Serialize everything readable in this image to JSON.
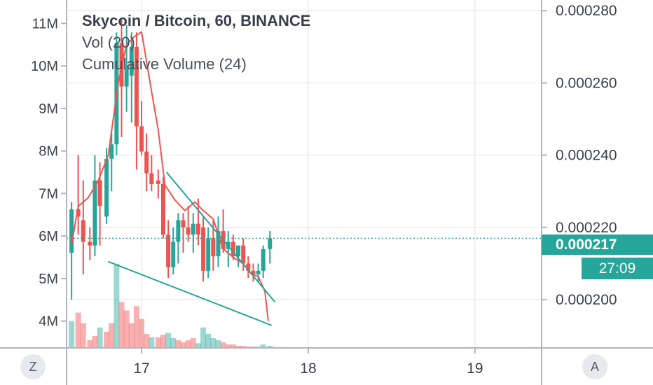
{
  "legend": {
    "title": "Skycoin / Bitcoin, 60, BINANCE",
    "vol": "Vol (20)",
    "cumulative": "Cumulative Volume (24)"
  },
  "badges": {
    "last_price": "0.000217",
    "countdown": "27:09"
  },
  "buttons": {
    "z": "Z",
    "a": "A"
  },
  "colors": {
    "up": "#26a69a",
    "down": "#ef5350",
    "vol_up": "#26a69a",
    "vol_down": "#ef5350",
    "line": "#ef5350",
    "trend": "#26a69a",
    "grid": "#e0e3eb"
  },
  "chart_data": {
    "type": "candlestick",
    "symbol": "Skycoin / Bitcoin",
    "interval": "60",
    "exchange": "BINANCE",
    "x_ticks": [
      "17",
      "18",
      "19"
    ],
    "x_range_days": [
      16.55,
      19.4
    ],
    "price_axis": {
      "ticks": [
        "0.000280",
        "0.000260",
        "0.000240",
        "0.000220",
        "0.000200"
      ],
      "ticks_values": [
        0.00028,
        0.00026,
        0.00024,
        0.00022,
        0.0002
      ],
      "range": [
        0.00018665,
        0.00028295
      ]
    },
    "volume_axis": {
      "ticks": [
        "11M",
        "10M",
        "9M",
        "8M",
        "7M",
        "6M",
        "5M",
        "4M"
      ],
      "ticks_values": [
        11,
        10,
        9,
        8,
        7,
        6,
        5,
        4
      ],
      "range_millions": [
        3.37,
        11.55
      ]
    },
    "last_price": 0.000217,
    "candles": [
      {
        "t": 16.58,
        "o": 0.000213,
        "h": 0.000227,
        "l": 0.0002,
        "c": 0.000225
      },
      {
        "t": 16.62,
        "o": 0.000225,
        "h": 0.00024,
        "l": 0.000218,
        "c": 0.000223
      },
      {
        "t": 16.65,
        "o": 0.000222,
        "h": 0.000233,
        "l": 0.000207,
        "c": 0.000216
      },
      {
        "t": 16.69,
        "o": 0.000216,
        "h": 0.00022,
        "l": 0.000211,
        "c": 0.000215
      },
      {
        "t": 16.72,
        "o": 0.000215,
        "h": 0.00024,
        "l": 0.000212,
        "c": 0.000233
      },
      {
        "t": 16.75,
        "o": 0.000233,
        "h": 0.000238,
        "l": 0.000215,
        "c": 0.000226
      },
      {
        "t": 16.79,
        "o": 0.000223,
        "h": 0.000242,
        "l": 0.000221,
        "c": 0.000239
      },
      {
        "t": 16.82,
        "o": 0.000239,
        "h": 0.000247,
        "l": 0.00023,
        "c": 0.000243
      },
      {
        "t": 16.85,
        "o": 0.000243,
        "h": 0.000274,
        "l": 0.00024,
        "c": 0.000271
      },
      {
        "t": 16.88,
        "o": 0.000271,
        "h": 0.000278,
        "l": 0.000245,
        "c": 0.000259
      },
      {
        "t": 16.91,
        "o": 0.000259,
        "h": 0.000276,
        "l": 0.000252,
        "c": 0.000264
      },
      {
        "t": 16.94,
        "o": 0.000262,
        "h": 0.000274,
        "l": 0.000249,
        "c": 0.00027
      },
      {
        "t": 16.97,
        "o": 0.00027,
        "h": 0.000274,
        "l": 0.000236,
        "c": 0.000248
      },
      {
        "t": 17.0,
        "o": 0.000248,
        "h": 0.000255,
        "l": 0.00024,
        "c": 0.000241
      },
      {
        "t": 17.03,
        "o": 0.000241,
        "h": 0.000246,
        "l": 0.00023,
        "c": 0.000235
      },
      {
        "t": 17.06,
        "o": 0.000235,
        "h": 0.00024,
        "l": 0.00023,
        "c": 0.000232
      },
      {
        "t": 17.1,
        "o": 0.000233,
        "h": 0.000236,
        "l": 0.000228,
        "c": 0.000232
      },
      {
        "t": 17.13,
        "o": 0.000232,
        "h": 0.000234,
        "l": 0.000217,
        "c": 0.000218
      },
      {
        "t": 17.16,
        "o": 0.000218,
        "h": 0.000222,
        "l": 0.000206,
        "c": 0.000209
      },
      {
        "t": 17.19,
        "o": 0.000209,
        "h": 0.00022,
        "l": 0.000207,
        "c": 0.000216
      },
      {
        "t": 17.22,
        "o": 0.000216,
        "h": 0.000224,
        "l": 0.00021,
        "c": 0.000222
      },
      {
        "t": 17.25,
        "o": 0.000222,
        "h": 0.000224,
        "l": 0.000213,
        "c": 0.00022
      },
      {
        "t": 17.28,
        "o": 0.00022,
        "h": 0.000226,
        "l": 0.000216,
        "c": 0.000218
      },
      {
        "t": 17.31,
        "o": 0.000218,
        "h": 0.000224,
        "l": 0.000213,
        "c": 0.000221
      },
      {
        "t": 17.34,
        "o": 0.000221,
        "h": 0.000228,
        "l": 0.000215,
        "c": 0.000218
      },
      {
        "t": 17.37,
        "o": 0.00022,
        "h": 0.000223,
        "l": 0.000205,
        "c": 0.000208
      },
      {
        "t": 17.4,
        "o": 0.000208,
        "h": 0.00022,
        "l": 0.000206,
        "c": 0.000217
      },
      {
        "t": 17.43,
        "o": 0.000217,
        "h": 0.000222,
        "l": 0.000208,
        "c": 0.000212
      },
      {
        "t": 17.46,
        "o": 0.000212,
        "h": 0.000223,
        "l": 0.000209,
        "c": 0.000219
      },
      {
        "t": 17.49,
        "o": 0.000219,
        "h": 0.000225,
        "l": 0.000213,
        "c": 0.000214
      },
      {
        "t": 17.52,
        "o": 0.000214,
        "h": 0.000219,
        "l": 0.000209,
        "c": 0.000216
      },
      {
        "t": 17.55,
        "o": 0.000216,
        "h": 0.000218,
        "l": 0.000211,
        "c": 0.000212
      },
      {
        "t": 17.58,
        "o": 0.000212,
        "h": 0.000215,
        "l": 0.000209,
        "c": 0.000215
      },
      {
        "t": 17.61,
        "o": 0.000215,
        "h": 0.000217,
        "l": 0.000208,
        "c": 0.00021
      },
      {
        "t": 17.64,
        "o": 0.00021,
        "h": 0.000212,
        "l": 0.000206,
        "c": 0.000208
      },
      {
        "t": 17.67,
        "o": 0.000208,
        "h": 0.00021,
        "l": 0.000205,
        "c": 0.000207
      },
      {
        "t": 17.7,
        "o": 0.000207,
        "h": 0.00021,
        "l": 0.000205,
        "c": 0.000208
      },
      {
        "t": 17.73,
        "o": 0.000208,
        "h": 0.000215,
        "l": 0.000206,
        "c": 0.000214
      },
      {
        "t": 17.77,
        "o": 0.000214,
        "h": 0.000219,
        "l": 0.00021,
        "c": 0.000217
      }
    ],
    "volumes": [
      {
        "t": 16.58,
        "v": 4.0,
        "dir": "up"
      },
      {
        "t": 16.62,
        "v": 4.2,
        "dir": "down"
      },
      {
        "t": 16.65,
        "v": 3.95,
        "dir": "down"
      },
      {
        "t": 16.69,
        "v": 3.55,
        "dir": "down"
      },
      {
        "t": 16.72,
        "v": 3.65,
        "dir": "down"
      },
      {
        "t": 16.75,
        "v": 3.85,
        "dir": "up"
      },
      {
        "t": 16.79,
        "v": 3.75,
        "dir": "down"
      },
      {
        "t": 16.82,
        "v": 3.95,
        "dir": "down"
      },
      {
        "t": 16.85,
        "v": 5.35,
        "dir": "up"
      },
      {
        "t": 16.88,
        "v": 4.45,
        "dir": "down"
      },
      {
        "t": 16.91,
        "v": 4.25,
        "dir": "down"
      },
      {
        "t": 16.94,
        "v": 3.95,
        "dir": "down"
      },
      {
        "t": 16.97,
        "v": 4.35,
        "dir": "down"
      },
      {
        "t": 17.0,
        "v": 4.05,
        "dir": "down"
      },
      {
        "t": 17.03,
        "v": 3.7,
        "dir": "down"
      },
      {
        "t": 17.06,
        "v": 3.62,
        "dir": "up"
      },
      {
        "t": 17.1,
        "v": 3.62,
        "dir": "down"
      },
      {
        "t": 17.13,
        "v": 3.68,
        "dir": "down"
      },
      {
        "t": 17.16,
        "v": 3.72,
        "dir": "up"
      },
      {
        "t": 17.19,
        "v": 3.6,
        "dir": "up"
      },
      {
        "t": 17.22,
        "v": 3.55,
        "dir": "down"
      },
      {
        "t": 17.25,
        "v": 3.5,
        "dir": "down"
      },
      {
        "t": 17.28,
        "v": 3.55,
        "dir": "down"
      },
      {
        "t": 17.31,
        "v": 3.6,
        "dir": "down"
      },
      {
        "t": 17.34,
        "v": 3.48,
        "dir": "up"
      },
      {
        "t": 17.37,
        "v": 3.85,
        "dir": "up"
      },
      {
        "t": 17.4,
        "v": 3.7,
        "dir": "up"
      },
      {
        "t": 17.43,
        "v": 3.6,
        "dir": "up"
      },
      {
        "t": 17.46,
        "v": 3.55,
        "dir": "up"
      },
      {
        "t": 17.49,
        "v": 3.5,
        "dir": "down"
      },
      {
        "t": 17.52,
        "v": 3.45,
        "dir": "down"
      },
      {
        "t": 17.55,
        "v": 3.45,
        "dir": "down"
      },
      {
        "t": 17.58,
        "v": 3.42,
        "dir": "down"
      },
      {
        "t": 17.61,
        "v": 3.42,
        "dir": "down"
      },
      {
        "t": 17.64,
        "v": 3.4,
        "dir": "down"
      },
      {
        "t": 17.67,
        "v": 3.4,
        "dir": "down"
      },
      {
        "t": 17.7,
        "v": 3.4,
        "dir": "up"
      },
      {
        "t": 17.73,
        "v": 3.45,
        "dir": "up"
      },
      {
        "t": 17.77,
        "v": 3.42,
        "dir": "up"
      }
    ],
    "cumulative_volume": [
      {
        "t": 16.58,
        "v": 5.8
      },
      {
        "t": 16.62,
        "v": 6.7
      },
      {
        "t": 16.68,
        "v": 6.9
      },
      {
        "t": 16.74,
        "v": 7.3
      },
      {
        "t": 16.8,
        "v": 7.9
      },
      {
        "t": 16.86,
        "v": 9.6
      },
      {
        "t": 16.91,
        "v": 10.5
      },
      {
        "t": 16.96,
        "v": 10.7
      },
      {
        "t": 17.0,
        "v": 10.8
      },
      {
        "t": 17.06,
        "v": 9.4
      },
      {
        "t": 17.1,
        "v": 8.5
      },
      {
        "t": 17.14,
        "v": 7.2
      },
      {
        "t": 17.2,
        "v": 6.85
      },
      {
        "t": 17.26,
        "v": 6.6
      },
      {
        "t": 17.32,
        "v": 6.8
      },
      {
        "t": 17.37,
        "v": 6.6
      },
      {
        "t": 17.43,
        "v": 6.4
      },
      {
        "t": 17.49,
        "v": 5.7
      },
      {
        "t": 17.55,
        "v": 5.5
      },
      {
        "t": 17.61,
        "v": 5.35
      },
      {
        "t": 17.66,
        "v": 5.1
      },
      {
        "t": 17.7,
        "v": 5.05
      },
      {
        "t": 17.74,
        "v": 4.7
      },
      {
        "t": 17.76,
        "v": 4.0
      }
    ],
    "trendlines": [
      {
        "t1": 17.15,
        "v1": 7.5,
        "t2": 17.8,
        "v2": 4.45
      },
      {
        "t1": 16.8,
        "v1": 5.4,
        "t2": 17.78,
        "v2": 3.9
      }
    ]
  }
}
